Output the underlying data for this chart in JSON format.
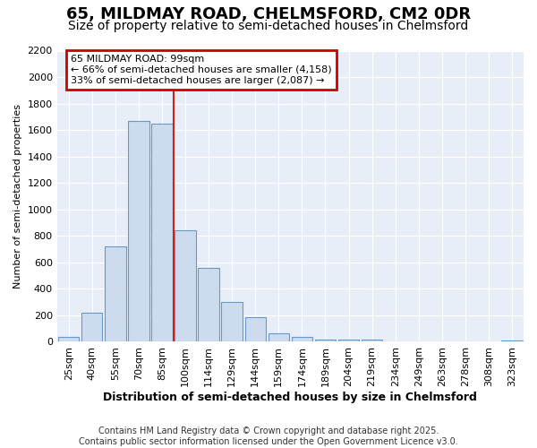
{
  "title1": "65, MILDMAY ROAD, CHELMSFORD, CM2 0DR",
  "title2": "Size of property relative to semi-detached houses in Chelmsford",
  "xlabel": "Distribution of semi-detached houses by size in Chelmsford",
  "ylabel": "Number of semi-detached properties",
  "bar_labels": [
    "25sqm",
    "40sqm",
    "55sqm",
    "70sqm",
    "85sqm",
    "100sqm",
    "114sqm",
    "129sqm",
    "144sqm",
    "159sqm",
    "174sqm",
    "189sqm",
    "204sqm",
    "219sqm",
    "234sqm",
    "249sqm",
    "263sqm",
    "278sqm",
    "308sqm",
    "323sqm"
  ],
  "bar_values": [
    40,
    220,
    720,
    1670,
    1650,
    840,
    560,
    300,
    185,
    65,
    35,
    20,
    20,
    15,
    0,
    0,
    0,
    0,
    0,
    10
  ],
  "bar_color": "#ccdcee",
  "bar_edge_color": "#6699cc",
  "property_label": "65 MILDMAY ROAD: 99sqm",
  "annotation_line1": "← 66% of semi-detached houses are smaller (4,158)",
  "annotation_line2": "33% of semi-detached houses are larger (2,087) →",
  "vline_color": "#cc2222",
  "vline_x_index": 5,
  "box_edge_color": "#cc0000",
  "ylim": [
    0,
    2200
  ],
  "yticks": [
    0,
    200,
    400,
    600,
    800,
    1000,
    1200,
    1400,
    1600,
    1800,
    2000,
    2200
  ],
  "footnote1": "Contains HM Land Registry data © Crown copyright and database right 2025.",
  "footnote2": "Contains public sector information licensed under the Open Government Licence v3.0.",
  "bg_color": "#ffffff",
  "plot_bg_color": "#e8eef8",
  "grid_color": "#ffffff",
  "title1_fontsize": 13,
  "title2_fontsize": 10,
  "xlabel_fontsize": 9,
  "ylabel_fontsize": 8,
  "tick_fontsize": 8,
  "annotation_fontsize": 8,
  "footnote_fontsize": 7
}
